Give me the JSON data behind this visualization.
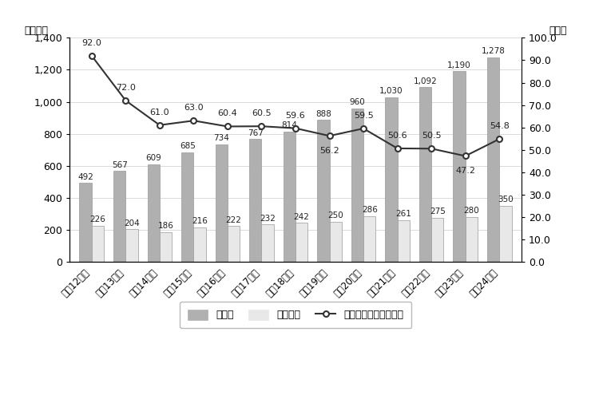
{
  "years": [
    "平成12年度",
    "平成13年度",
    "平成14年度",
    "平成15年度",
    "平成16年度",
    "平成17年度",
    "平成18年度",
    "平成19年度",
    "平成20年度",
    "平成21年度",
    "平成22年度",
    "平成23年度",
    "平成24年度"
  ],
  "jigyouhi": [
    492,
    567,
    609,
    685,
    734,
    767,
    814,
    888,
    960,
    1030,
    1092,
    1190,
    1278
  ],
  "kokko": [
    226,
    204,
    186,
    216,
    222,
    232,
    242,
    250,
    286,
    261,
    275,
    280,
    350
  ],
  "koufuritsu": [
    92.0,
    72.0,
    61.0,
    63.0,
    60.4,
    60.5,
    59.6,
    56.2,
    59.5,
    50.6,
    50.5,
    47.2,
    54.8
  ],
  "bar_color_jigyouhi": "#b0b0b0",
  "bar_color_kokko": "#e8e8e8",
  "line_color": "#333333",
  "ylim_left": [
    0,
    1400
  ],
  "ylim_right": [
    0.0,
    100.0
  ],
  "yticks_left": [
    0,
    200,
    400,
    600,
    800,
    1000,
    1200,
    1400
  ],
  "yticks_right": [
    0.0,
    10.0,
    20.0,
    30.0,
    40.0,
    50.0,
    60.0,
    70.0,
    80.0,
    90.0,
    100.0
  ],
  "ylabel_left": "（億円）",
  "ylabel_right": "（％）",
  "legend_jigyouhi": "事業費",
  "legend_kokko": "国庫補助",
  "legend_line": "都道府県への交付率％",
  "bg_color": "#ffffff",
  "grid_color": "#cccccc",
  "line_label_offsets": [
    [
      0,
      8
    ],
    [
      0,
      8
    ],
    [
      0,
      8
    ],
    [
      0,
      8
    ],
    [
      0,
      8
    ],
    [
      0,
      8
    ],
    [
      0,
      8
    ],
    [
      0,
      -10
    ],
    [
      0,
      8
    ],
    [
      0,
      8
    ],
    [
      0,
      8
    ],
    [
      0,
      -10
    ],
    [
      0,
      8
    ]
  ]
}
